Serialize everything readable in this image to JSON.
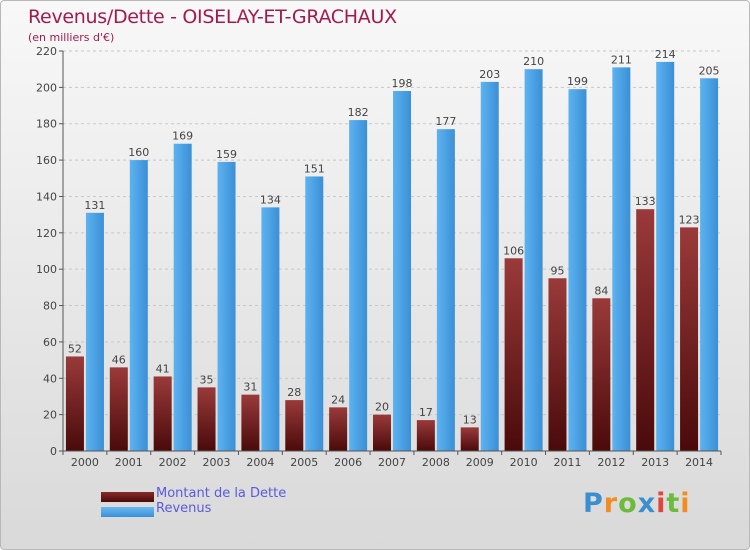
{
  "chart_data": {
    "type": "bar",
    "title": "Revenus/Dette - OISELAY-ET-GRACHAUX",
    "subtitle": "(en milliers d'€)",
    "categories": [
      "2000",
      "2001",
      "2002",
      "2003",
      "2004",
      "2005",
      "2006",
      "2007",
      "2008",
      "2009",
      "2010",
      "2011",
      "2012",
      "2013",
      "2014"
    ],
    "series": [
      {
        "name": "Montant de la Dette",
        "color": "#7a1e1e",
        "values": [
          52,
          46,
          41,
          35,
          31,
          28,
          24,
          20,
          17,
          13,
          106,
          95,
          84,
          133,
          123
        ]
      },
      {
        "name": "Revenus",
        "color": "#4aa3e6",
        "values": [
          131,
          160,
          169,
          159,
          134,
          151,
          182,
          198,
          177,
          203,
          210,
          199,
          211,
          214,
          205
        ]
      }
    ],
    "ylim": [
      0,
      220
    ],
    "yticks": [
      0,
      20,
      40,
      60,
      80,
      100,
      120,
      140,
      160,
      180,
      200,
      220
    ],
    "grid": true,
    "legend_position": "bottom-left"
  },
  "logo": {
    "letters": [
      "P",
      "r",
      "o",
      "x",
      "i",
      "t",
      "i"
    ]
  }
}
